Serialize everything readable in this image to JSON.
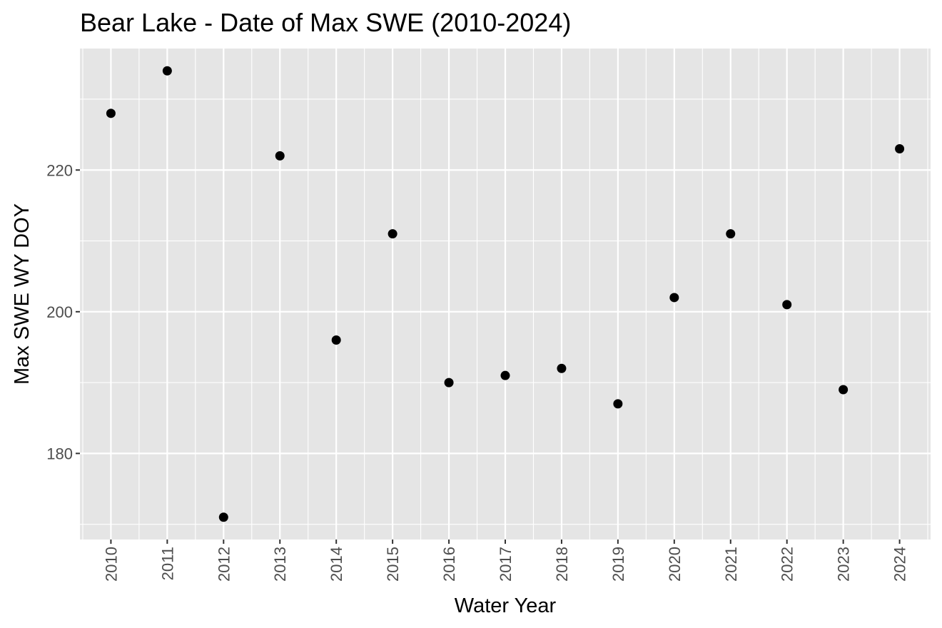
{
  "chart_data": {
    "type": "scatter",
    "title": "Bear Lake - Date of Max SWE (2010-2024)",
    "xlabel": "Water Year",
    "ylabel": "Max SWE WY DOY",
    "x": [
      2010,
      2011,
      2012,
      2013,
      2014,
      2015,
      2016,
      2017,
      2018,
      2019,
      2020,
      2021,
      2022,
      2023,
      2024
    ],
    "y": [
      228,
      234,
      171,
      222,
      196,
      211,
      190,
      191,
      192,
      187,
      202,
      211,
      201,
      189,
      223
    ],
    "x_tick_labels": [
      "2010",
      "2011",
      "2012",
      "2013",
      "2014",
      "2015",
      "2016",
      "2017",
      "2018",
      "2019",
      "2020",
      "2021",
      "2022",
      "2023",
      "2024"
    ],
    "y_ticks": [
      180,
      200,
      220
    ],
    "xlim": [
      2009.45,
      2024.55
    ],
    "ylim": [
      167.85,
      237.15
    ],
    "grid": true,
    "legend": "none",
    "colors": {
      "panel": "#e5e5e5",
      "grid": "#ffffff",
      "point": "#000000",
      "tick_text": "#4d4d4d"
    }
  }
}
